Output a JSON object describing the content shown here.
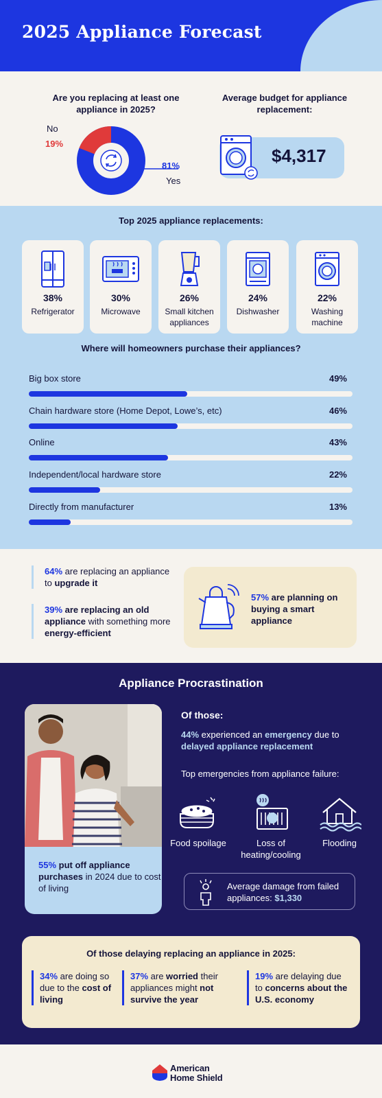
{
  "header": {
    "title": "2025 Appliance Forecast"
  },
  "replacing": {
    "question": "Are you replacing at least one appliance in 2025?",
    "no_label": "No",
    "no_pct": "19%",
    "yes_label": "Yes",
    "yes_pct": "81%",
    "colors": {
      "yes": "#1d36e0",
      "no": "#e03a3a"
    }
  },
  "budget": {
    "question": "Average budget for appliance replacement:",
    "value": "$4,317",
    "icon": "washing-machine-icon"
  },
  "top_replacements": {
    "title": "Top 2025 appliance replacements:",
    "items": [
      {
        "pct": "38%",
        "name": "Refrigerator",
        "icon": "refrigerator-icon"
      },
      {
        "pct": "30%",
        "name": "Microwave",
        "icon": "microwave-icon"
      },
      {
        "pct": "26%",
        "name": "Small kitchen appliances",
        "icon": "blender-icon"
      },
      {
        "pct": "24%",
        "name": "Dishwasher",
        "icon": "dishwasher-icon"
      },
      {
        "pct": "22%",
        "name": "Washing machine",
        "icon": "washing-machine-icon"
      }
    ]
  },
  "purchase": {
    "title": "Where will homeowners purchase their appliances?",
    "rows": [
      {
        "label": "Big box store",
        "pct": "49%"
      },
      {
        "label": "Chain hardware store (Home Depot, Lowe’s, etc)",
        "pct": "46%"
      },
      {
        "label": "Online",
        "pct": "43%"
      },
      {
        "label": "Independent/local hardware store",
        "pct": "22%"
      },
      {
        "label": "Directly from manufacturer",
        "pct": "13%"
      }
    ]
  },
  "chart_data": [
    {
      "type": "pie",
      "title": "Are you replacing at least one appliance in 2025?",
      "categories": [
        "Yes",
        "No"
      ],
      "values": [
        81,
        19
      ]
    },
    {
      "type": "bar",
      "title": "Top 2025 appliance replacements:",
      "categories": [
        "Refrigerator",
        "Microwave",
        "Small kitchen appliances",
        "Dishwasher",
        "Washing machine"
      ],
      "values": [
        38,
        30,
        26,
        24,
        22
      ]
    },
    {
      "type": "bar",
      "title": "Where will homeowners purchase their appliances?",
      "categories": [
        "Big box store",
        "Chain hardware store (Home Depot, Lowe’s, etc)",
        "Online",
        "Independent/local hardware store",
        "Directly from manufacturer"
      ],
      "values": [
        49,
        46,
        43,
        22,
        13
      ],
      "xlim": [
        0,
        100
      ]
    }
  ],
  "motivations": {
    "s1": {
      "pct": "64%",
      "a": " are replacing an appliance to ",
      "b": "upgrade it"
    },
    "s2": {
      "pct": "39%",
      "a": " are replacing an old appliance",
      "b": " with something more ",
      "c": "energy-efficient"
    },
    "smart": {
      "pct": "57%",
      "a": " are planning on buying a smart appliance"
    }
  },
  "procrastination": {
    "title": "Appliance Procrastination",
    "photo_caption": {
      "pct": "55%",
      "a": " put off appliance purchases",
      "b": " in 2024 due to cost of living"
    },
    "of_those": "Of those:",
    "emergency": {
      "pct": "44%",
      "a": " experienced an ",
      "b": "emergency",
      "c": " due to ",
      "d": "delayed appliance replacement"
    },
    "top_emergencies": "Top emergencies from appliance failure:",
    "emergencies": [
      {
        "name": "Food spoilage",
        "icon": "food-spoilage-icon"
      },
      {
        "name": "Loss of heating/cooling",
        "icon": "heating-cooling-icon"
      },
      {
        "name": "Flooding",
        "icon": "flooding-icon"
      }
    ],
    "damage": {
      "a": "Average damage from failed appliances: ",
      "value": "$1,330"
    }
  },
  "delaying": {
    "title": "Of those delaying replacing an appliance in 2025:",
    "s1": {
      "pct": "34%",
      "a": " are doing so due to the ",
      "b": "cost of living"
    },
    "s2": {
      "pct": "37%",
      "a": " are ",
      "b": "worried",
      "c": " their appliances might ",
      "d": "not survive the year"
    },
    "s3": {
      "pct": "19%",
      "a": " are delaying due to ",
      "b": "concerns about the U.S. economy"
    }
  },
  "footer": {
    "brand_line1": "American",
    "brand_line2": "Home Shield"
  }
}
